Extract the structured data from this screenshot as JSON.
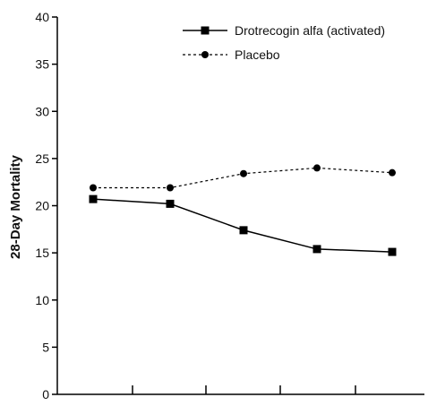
{
  "chart_data": {
    "type": "line",
    "ylabel": "28-Day Mortality",
    "xlabel": "",
    "ylim": [
      0,
      40
    ],
    "yticks": [
      0,
      5,
      10,
      15,
      20,
      25,
      30,
      35,
      40
    ],
    "x_count": 5,
    "grid": false,
    "legend_position": "top-right",
    "series": [
      {
        "name": "Drotrecogin alfa (activated)",
        "style": "solid",
        "marker": "square",
        "color": "#000000",
        "values": [
          20.7,
          20.2,
          17.4,
          15.4,
          15.1
        ]
      },
      {
        "name": "Placebo",
        "style": "dashed",
        "marker": "circle",
        "color": "#000000",
        "values": [
          21.9,
          21.9,
          23.4,
          24.0,
          23.5
        ]
      }
    ]
  }
}
